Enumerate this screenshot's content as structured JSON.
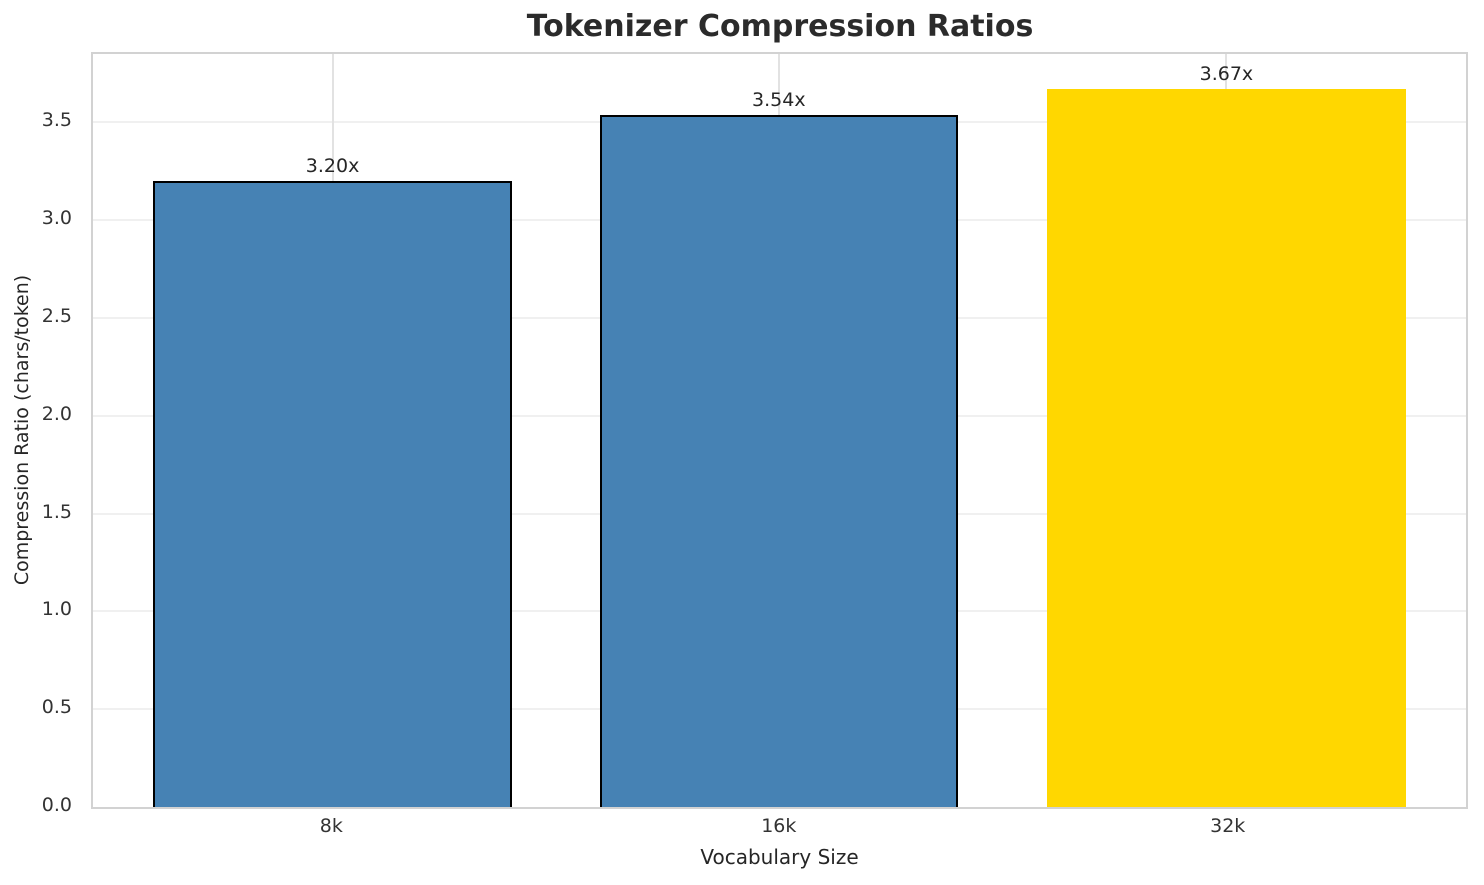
{
  "chart_data": {
    "type": "bar",
    "title": "Tokenizer Compression Ratios",
    "xlabel": "Vocabulary Size",
    "ylabel": "Compression Ratio (chars/token)",
    "categories": [
      "8k",
      "16k",
      "32k"
    ],
    "values": [
      3.2,
      3.54,
      3.67
    ],
    "value_labels": [
      "3.20x",
      "3.54x",
      "3.67x"
    ],
    "ylim": [
      0,
      3.85
    ],
    "yticks": [
      0.0,
      0.5,
      1.0,
      1.5,
      2.0,
      2.5,
      3.0,
      3.5
    ],
    "ytick_labels": [
      "0.0",
      "0.5",
      "1.0",
      "1.5",
      "2.0",
      "2.5",
      "3.0",
      "3.5"
    ],
    "grid": true,
    "legend": "none",
    "bar_colors": [
      "#4682B4",
      "#4682B4",
      "#FFD700"
    ],
    "bar_edge_colors": [
      "#000000",
      "#000000",
      "none"
    ],
    "highlight_index": 2
  },
  "colors": {
    "background": "#ffffff",
    "bar_blue": "#4682B4",
    "bar_gold": "#FFD700",
    "bar_edge": "#000000",
    "spine": "#d2d2d2",
    "gridline": "#f0f0f0",
    "title_text": "#2b2b2b",
    "tick_text": "#333333"
  }
}
